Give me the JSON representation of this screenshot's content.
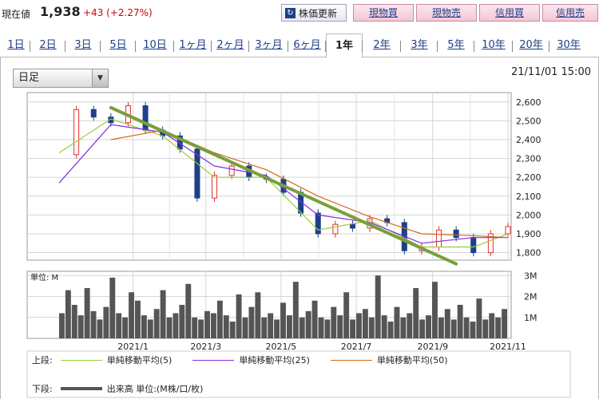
{
  "header": {
    "price_label": "現在値",
    "price_value": "1,938",
    "price_change": "+43 (+2.27%)",
    "refresh_label": "株価更新",
    "refresh_icon": "refresh-icon",
    "trade_buttons": [
      "現物買",
      "現物売",
      "信用買",
      "信用売"
    ]
  },
  "tabs": [
    "1日",
    "2日",
    "3日",
    "5日",
    "10日",
    "1ヶ月",
    "2ヶ月",
    "3ヶ月",
    "6ヶ月",
    "1年",
    "2年",
    "3年",
    "5年",
    "10年",
    "20年",
    "30年"
  ],
  "active_tab": "1年",
  "period_select": {
    "value": "日足"
  },
  "timestamp": "21/11/01 15:00",
  "legend": {
    "upper_label": "上段:",
    "lower_label": "下段:",
    "upper_items": [
      "単純移動平均(5)",
      "単純移動平均(25)",
      "単純移動平均(50)"
    ],
    "lower_item": "出来高 単位:(M株/口/枚)",
    "colors": {
      "ma5": "#9acd32",
      "ma25": "#8a2be2",
      "ma50": "#d2691e",
      "volume": "#555555"
    }
  },
  "chart_data": [
    {
      "type": "candlestick",
      "title": "",
      "x_tick_labels": [
        "2021/1",
        "2021/3",
        "2021/5",
        "2021/7",
        "2021/9",
        "2021/11"
      ],
      "x_tick_dates": [
        "2021-01-01",
        "2021-03-01",
        "2021-05-01",
        "2021-07-01",
        "2021-09-01",
        "2021-11-01"
      ],
      "x_range": [
        "2020-11-02",
        "2021-11-01"
      ],
      "y_ticks": [
        1800,
        1900,
        2000,
        2100,
        2200,
        2300,
        2400,
        2500,
        2600
      ],
      "y_tick_labels": [
        "1,800",
        "1,900",
        "2,000",
        "2,100",
        "2,200",
        "2,300",
        "2,400",
        "2,500",
        "2,600"
      ],
      "ylim": [
        1760,
        2650
      ],
      "grid": true,
      "up_color": "#e03030",
      "down_color": "#1e3f8a",
      "series": [
        {
          "name": "価格",
          "x": [
            "2020-11-02",
            "2020-11-16",
            "2020-11-30",
            "2020-12-14",
            "2020-12-28",
            "2021-01-11",
            "2021-01-25",
            "2021-02-08",
            "2021-02-22",
            "2021-03-08",
            "2021-03-22",
            "2021-04-05",
            "2021-04-19",
            "2021-05-03",
            "2021-05-17",
            "2021-05-31",
            "2021-06-14",
            "2021-06-28",
            "2021-07-12",
            "2021-07-26",
            "2021-08-09",
            "2021-08-23",
            "2021-09-06",
            "2021-09-20",
            "2021-10-04",
            "2021-10-18",
            "2021-11-01"
          ],
          "values": [
            2320,
            2560,
            2520,
            2490,
            2580,
            2450,
            2420,
            2350,
            2090,
            2210,
            2260,
            2200,
            2190,
            2120,
            2010,
            1900,
            1950,
            1930,
            1980,
            1960,
            1810,
            1830,
            1920,
            1880,
            1800,
            1900,
            1938
          ]
        },
        {
          "name": "単純移動平均(5)",
          "x": [
            "2020-11-02",
            "2020-12-14",
            "2021-01-25",
            "2021-03-08",
            "2021-04-19",
            "2021-05-31",
            "2021-07-12",
            "2021-08-23",
            "2021-10-04",
            "2021-11-01"
          ],
          "values": [
            2330,
            2510,
            2420,
            2200,
            2200,
            1920,
            1970,
            1830,
            1830,
            1900
          ]
        },
        {
          "name": "単純移動平均(25)",
          "x": [
            "2020-11-02",
            "2020-12-14",
            "2021-01-25",
            "2021-03-08",
            "2021-04-19",
            "2021-05-31",
            "2021-07-12",
            "2021-08-23",
            "2021-10-04",
            "2021-11-01"
          ],
          "values": [
            2170,
            2480,
            2440,
            2260,
            2210,
            2000,
            1960,
            1850,
            1880,
            1880
          ]
        },
        {
          "name": "単純移動平均(50)",
          "x": [
            "2020-12-14",
            "2021-01-25",
            "2021-03-08",
            "2021-04-19",
            "2021-05-31",
            "2021-07-12",
            "2021-08-23",
            "2021-10-04",
            "2021-11-01"
          ],
          "values": [
            2400,
            2450,
            2330,
            2240,
            2100,
            1990,
            1900,
            1890,
            1880
          ]
        }
      ],
      "trendline": {
        "x": [
          "2020-12-14",
          "2021-09-20"
        ],
        "values": [
          2570,
          1740
        ],
        "color": "#77a03a"
      }
    },
    {
      "type": "bar",
      "title": "",
      "unit_label": "単位: M",
      "x_tick_labels": [
        "2021/1",
        "2021/3",
        "2021/5",
        "2021/7",
        "2021/9",
        "2021/11"
      ],
      "y_ticks": [
        1,
        2,
        3
      ],
      "y_tick_labels": [
        "1M",
        "2M",
        "3M"
      ],
      "ylim": [
        0,
        3.2
      ],
      "grid": true,
      "values": [
        1.2,
        2.3,
        1.6,
        1.1,
        2.4,
        1.3,
        0.9,
        1.5,
        2.9,
        1.2,
        1.0,
        2.2,
        1.8,
        1.1,
        0.9,
        1.4,
        2.3,
        1.0,
        1.2,
        1.6,
        2.6,
        1.0,
        0.9,
        1.3,
        1.2,
        1.8,
        1.1,
        0.8,
        2.1,
        1.0,
        1.5,
        2.2,
        1.0,
        1.2,
        0.9,
        1.7,
        1.1,
        2.7,
        1.0,
        1.3,
        1.8,
        1.0,
        0.9,
        1.5,
        1.1,
        2.2,
        0.9,
        1.2,
        1.4,
        1.0,
        3.0,
        1.1,
        0.8,
        1.5,
        1.0,
        1.2,
        2.4,
        0.9,
        1.1,
        2.7,
        1.0,
        1.4,
        0.9,
        1.6,
        1.0,
        0.8,
        1.9,
        0.9,
        1.2,
        1.0,
        1.4
      ]
    }
  ]
}
